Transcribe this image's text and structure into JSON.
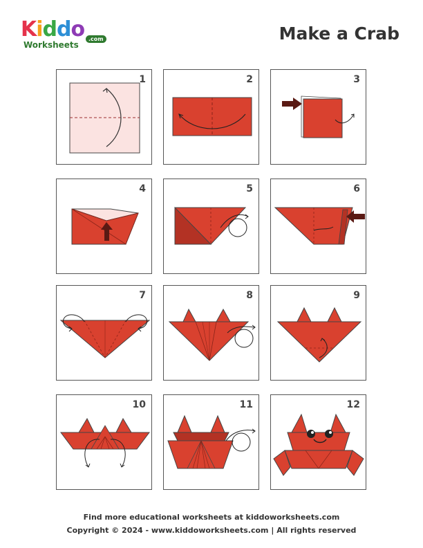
{
  "logo": {
    "letters": [
      "K",
      "i",
      "d",
      "d",
      "o"
    ],
    "letter_colors": [
      "#e5334b",
      "#f6a21a",
      "#39a845",
      "#2d8fd6",
      "#8e3bb5"
    ],
    "sub": "Worksheets",
    "com": ".com"
  },
  "title": "Make a Crab",
  "colors": {
    "paper": "#d9412f",
    "paper_dark": "#b33224",
    "paper_light": "#fbe3e1",
    "arrow": "#5a1a14",
    "outline": "#444444"
  },
  "steps": [
    {
      "number": "1"
    },
    {
      "number": "2"
    },
    {
      "number": "3"
    },
    {
      "number": "4"
    },
    {
      "number": "5"
    },
    {
      "number": "6"
    },
    {
      "number": "7"
    },
    {
      "number": "8"
    },
    {
      "number": "9"
    },
    {
      "number": "10"
    },
    {
      "number": "11"
    },
    {
      "number": "12"
    }
  ],
  "footer": {
    "line1": "Find more educational worksheets at kiddoworksheets.com",
    "line2": "Copyright © 2024 - www.kiddoworksheets.com  |  All rights reserved"
  }
}
